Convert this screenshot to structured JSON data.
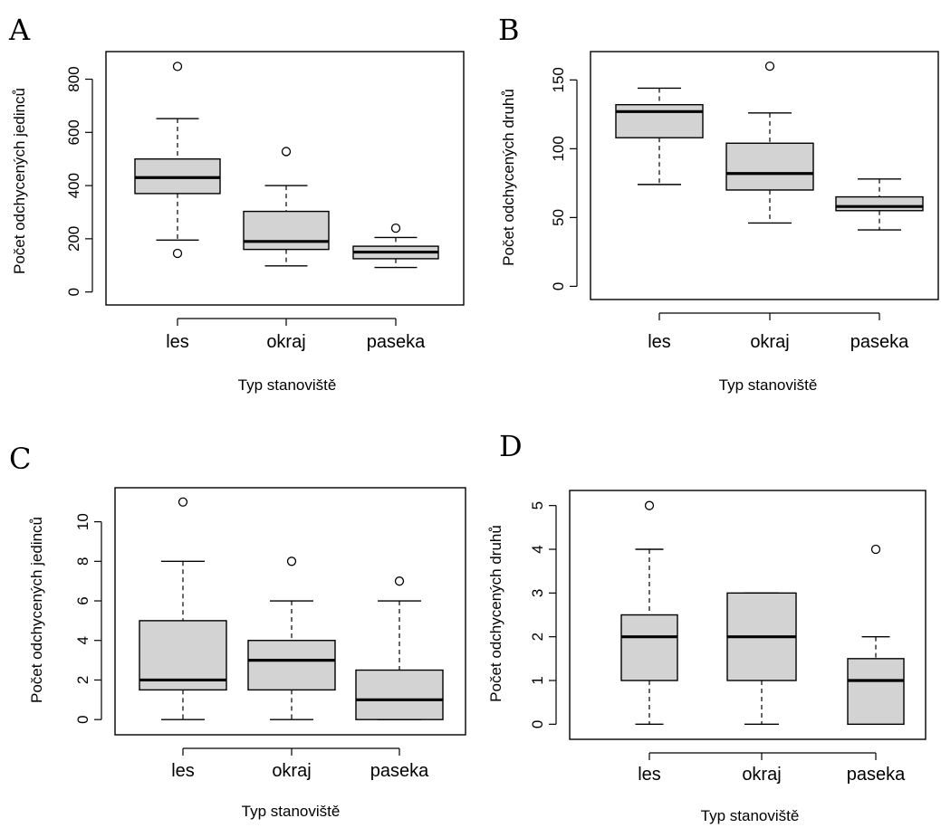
{
  "chart_data": [
    {
      "panel": "A",
      "type": "box",
      "xlabel": "Typ stanoviště",
      "ylabel": "Počet odchycených jedinců",
      "categories": [
        "les",
        "okraj",
        "paseka"
      ],
      "ylim": [
        -25,
        880
      ],
      "yticks": [
        "0",
        "200",
        "400",
        "600",
        "800"
      ],
      "yticks_values": [
        0,
        200,
        400,
        600,
        800
      ],
      "boxes": [
        {
          "category": "les",
          "low": 195,
          "q1": 370,
          "median": 430,
          "q3": 500,
          "high": 652,
          "outliers": [
            145,
            848
          ]
        },
        {
          "category": "okraj",
          "low": 98,
          "q1": 160,
          "median": 190,
          "q3": 303,
          "high": 400,
          "outliers": [
            528
          ]
        },
        {
          "category": "paseka",
          "low": 92,
          "q1": 125,
          "median": 150,
          "q3": 172,
          "high": 205,
          "outliers": [
            240
          ]
        }
      ]
    },
    {
      "panel": "B",
      "type": "box",
      "xlabel": "Typ stanoviště",
      "ylabel": "Počet odchycených druhů",
      "categories": [
        "les",
        "okraj",
        "paseka"
      ],
      "ylim": [
        -5,
        166
      ],
      "yticks": [
        "0",
        "50",
        "100",
        "150"
      ],
      "yticks_values": [
        0,
        50,
        100,
        150
      ],
      "boxes": [
        {
          "category": "les",
          "low": 74,
          "q1": 108,
          "median": 127,
          "q3": 132,
          "high": 144,
          "outliers": []
        },
        {
          "category": "okraj",
          "low": 46,
          "q1": 70,
          "median": 82,
          "q3": 104,
          "high": 126,
          "outliers": [
            160
          ]
        },
        {
          "category": "paseka",
          "low": 41,
          "q1": 55,
          "median": 58,
          "q3": 65,
          "high": 78,
          "outliers": []
        }
      ]
    },
    {
      "panel": "C",
      "type": "box",
      "xlabel": "Typ stanoviště",
      "ylabel": "Počet odchycených jedinců",
      "categories": [
        "les",
        "okraj",
        "paseka"
      ],
      "ylim": [
        -0.45,
        11.4
      ],
      "yticks": [
        "0",
        "2",
        "4",
        "6",
        "8",
        "10"
      ],
      "yticks_values": [
        0,
        2,
        4,
        6,
        8,
        10
      ],
      "boxes": [
        {
          "category": "les",
          "low": 0,
          "q1": 1.5,
          "median": 2,
          "q3": 5,
          "high": 8,
          "outliers": [
            11
          ]
        },
        {
          "category": "okraj",
          "low": 0,
          "q1": 1.5,
          "median": 3,
          "q3": 4,
          "high": 6,
          "outliers": [
            8
          ]
        },
        {
          "category": "paseka",
          "low": 0,
          "q1": 0,
          "median": 1,
          "q3": 2.5,
          "high": 6,
          "outliers": [
            7
          ]
        }
      ]
    },
    {
      "panel": "D",
      "type": "box",
      "xlabel": "Typ stanoviště",
      "ylabel": "Počet odchycených druhů",
      "categories": [
        "les",
        "okraj",
        "paseka"
      ],
      "ylim": [
        -0.2,
        5.2
      ],
      "yticks": [
        "0",
        "1",
        "2",
        "3",
        "4",
        "5"
      ],
      "yticks_values": [
        0,
        1,
        2,
        3,
        4,
        5
      ],
      "boxes": [
        {
          "category": "les",
          "low": 0,
          "q1": 1,
          "median": 2,
          "q3": 2.5,
          "high": 4,
          "outliers": [
            5
          ]
        },
        {
          "category": "okraj",
          "low": 0,
          "q1": 1,
          "median": 2,
          "q3": 3,
          "high": 3,
          "outliers": []
        },
        {
          "category": "paseka",
          "low": 0,
          "q1": 0,
          "median": 1,
          "q3": 1.5,
          "high": 2,
          "outliers": [
            4
          ]
        }
      ]
    }
  ]
}
